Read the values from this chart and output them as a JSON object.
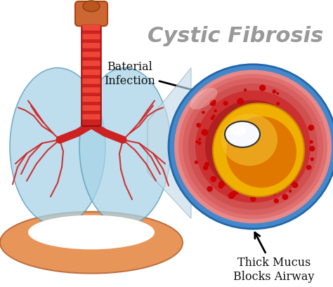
{
  "title": "Cystic Fibrosis",
  "title_color": "#999999",
  "title_fontsize": 22,
  "title_fontstyle": "italic",
  "title_fontweight": "bold",
  "label1": "Baterial\nInfection",
  "label2": "Thick Mucus\nBlocks Airway",
  "bg_color": "#ffffff",
  "lung_color": "#a8d4e8",
  "lung_edge_color": "#5599bb",
  "lung_alpha": 0.75,
  "trachea_color": "#cc2222",
  "trachea_ring_color": "#ff5533",
  "larynx_color": "#cc6633",
  "diaphragm_color": "#e8955a",
  "zoom_cone_color": "#c0d8e8",
  "circle_border_color": "#4488cc",
  "outer_pink": "#e88080",
  "mid_red": "#cc3333",
  "inner_red": "#aa2222",
  "mucus_yellow": "#f0b000",
  "mucus_orange": "#e07800",
  "lumen_color": "#ffffff",
  "dot_color": "#cc0000",
  "label_fontsize": 11.5,
  "label_color": "#111111"
}
